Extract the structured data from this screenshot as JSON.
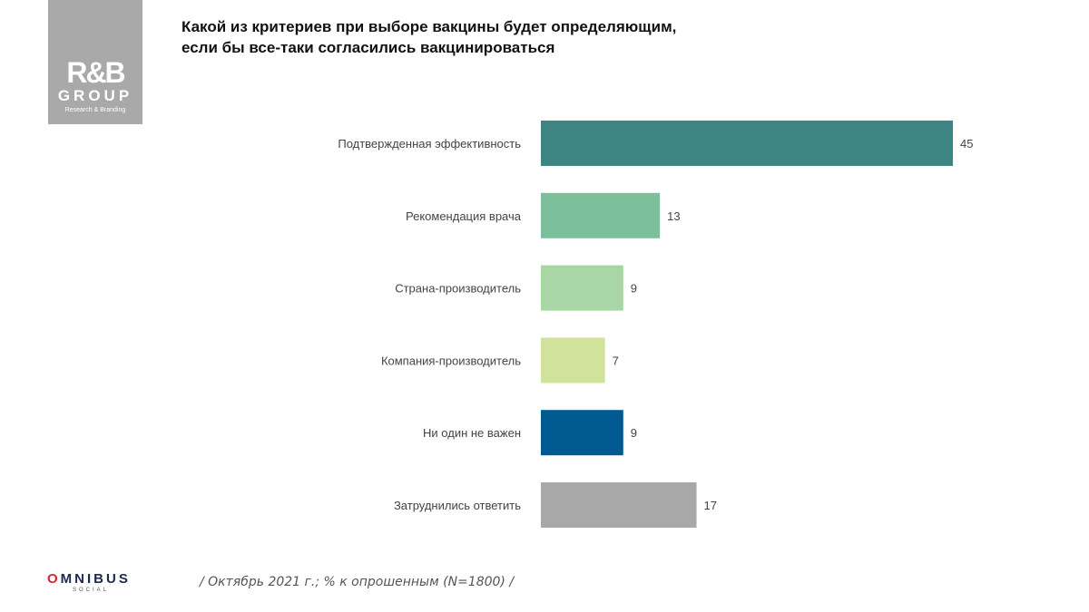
{
  "logo": {
    "main": "R&B",
    "group": "GROUP",
    "tagline": "Research & Branding"
  },
  "footer": {
    "brand_first": "O",
    "brand_rest": "MNIBUS",
    "brand_sub": "SOCIAL",
    "note": "/ Октябрь 2021 г.; % к опрошенным (N=1800) /"
  },
  "chart_data": {
    "type": "bar",
    "orientation": "horizontal",
    "title": "Какой из критериев при выборе вакцины будет определяющим, если бы все-таки согласились вакцинироваться",
    "title_lines": [
      "Какой из критериев при выборе вакцины будет определяющим,",
      "если бы все-таки согласились вакцинироваться"
    ],
    "categories": [
      "Подтвержденная эффективность",
      "Рекомендация врача",
      "Страна-производитель",
      "Компания-производитель",
      "Ни один не важен",
      "Затруднились ответить"
    ],
    "values": [
      45,
      13,
      9,
      7,
      9,
      17
    ],
    "colors": [
      "#3c8582",
      "#7bbf9b",
      "#a8d6a5",
      "#d1e29c",
      "#005a91",
      "#a8a8a8"
    ],
    "xlim": [
      0,
      45
    ],
    "grid": false,
    "data_labels": true
  }
}
